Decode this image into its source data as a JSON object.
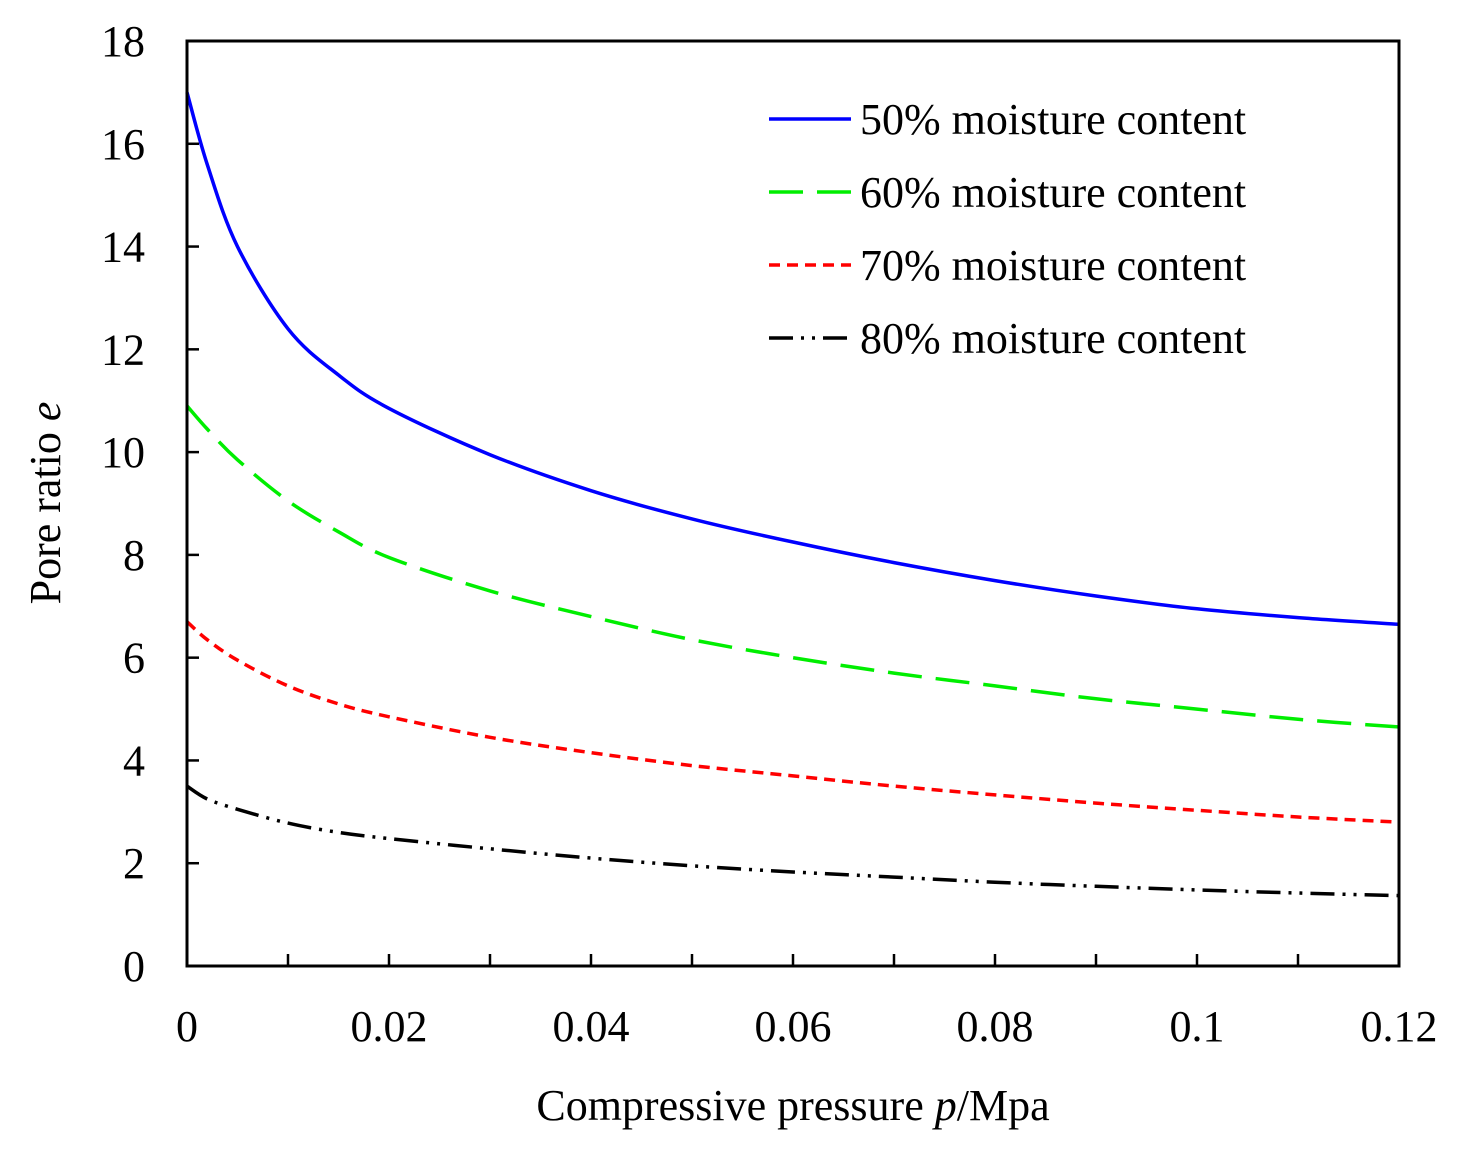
{
  "chart_data": {
    "type": "line",
    "title": "",
    "xlabel_prefix": "Compressive pressure ",
    "xlabel_var": "p",
    "xlabel_suffix": "/Mpa",
    "ylabel_prefix": "Pore ratio ",
    "ylabel_var": "e",
    "xlim": [
      0,
      0.12
    ],
    "ylim": [
      0,
      18
    ],
    "x_ticks": [
      0,
      0.02,
      0.04,
      0.06,
      0.08,
      0.1,
      0.12
    ],
    "x_tick_labels": [
      "0",
      "0.02",
      "0.04",
      "0.06",
      "0.08",
      "0.1",
      "0.12"
    ],
    "x_minor_ticks": [
      0.01,
      0.03,
      0.05,
      0.07,
      0.09,
      0.11
    ],
    "y_ticks": [
      0,
      2,
      4,
      6,
      8,
      10,
      12,
      14,
      16,
      18
    ],
    "y_tick_labels": [
      "0",
      "2",
      "4",
      "6",
      "8",
      "10",
      "12",
      "14",
      "16",
      "18"
    ],
    "grid": false,
    "legend_position": "top-right",
    "x": [
      0,
      0.002,
      0.005,
      0.01,
      0.015,
      0.02,
      0.03,
      0.04,
      0.05,
      0.06,
      0.07,
      0.08,
      0.09,
      0.1,
      0.11,
      0.12
    ],
    "series": [
      {
        "name": "50% moisture content",
        "color": "#0000ff",
        "dash": "solid",
        "values": [
          17.0,
          15.6,
          14.0,
          12.4,
          11.5,
          10.85,
          9.95,
          9.25,
          8.7,
          8.25,
          7.85,
          7.5,
          7.2,
          6.95,
          6.78,
          6.65
        ]
      },
      {
        "name": "60% moisture content",
        "color": "#00ee00",
        "dash": "long-dash",
        "values": [
          10.9,
          10.45,
          9.85,
          9.05,
          8.45,
          7.95,
          7.3,
          6.8,
          6.35,
          6.0,
          5.7,
          5.45,
          5.2,
          5.0,
          4.8,
          4.65
        ]
      },
      {
        "name": "70% moisture content",
        "color": "#ff0000",
        "dash": "short-dash",
        "values": [
          6.7,
          6.35,
          5.95,
          5.45,
          5.1,
          4.85,
          4.45,
          4.15,
          3.9,
          3.7,
          3.5,
          3.33,
          3.17,
          3.03,
          2.9,
          2.8
        ]
      },
      {
        "name": "80% moisture content",
        "color": "#000000",
        "dash": "dash-dot-dot",
        "values": [
          3.5,
          3.25,
          3.05,
          2.78,
          2.6,
          2.48,
          2.28,
          2.1,
          1.95,
          1.83,
          1.73,
          1.63,
          1.55,
          1.48,
          1.42,
          1.37
        ]
      }
    ]
  }
}
